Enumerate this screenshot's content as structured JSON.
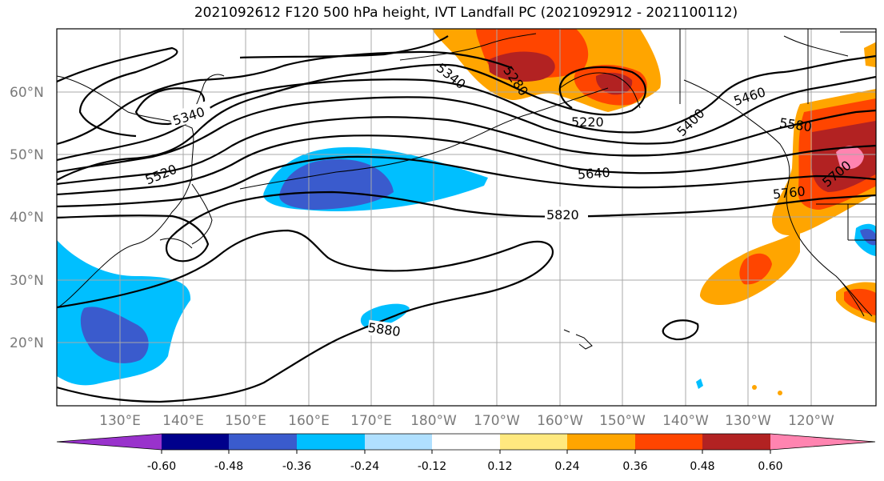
{
  "title": "2021092612 F120 500 hPa height, IVT Landfall PC (2021092912 - 2021100112)",
  "lat_labels": [
    "60°N",
    "50°N",
    "40°N",
    "30°N",
    "20°N"
  ],
  "lon_labels": [
    "130°E",
    "140°E",
    "150°E",
    "160°E",
    "170°E",
    "180°W",
    "170°W",
    "160°W",
    "150°W",
    "140°W",
    "130°W",
    "120°W"
  ],
  "contour_labels": [
    "5340",
    "5340",
    "5280",
    "5220",
    "5400",
    "5460",
    "5580",
    "5520",
    "5640",
    "5700",
    "5760",
    "5820",
    "5880"
  ],
  "colorbar": {
    "tick_labels": [
      "-0.60",
      "-0.48",
      "-0.36",
      "-0.24",
      "-0.12",
      "0.12",
      "0.24",
      "0.36",
      "0.48",
      "0.60"
    ],
    "colors": [
      "#9932cc",
      "#00008b",
      "#3a5bcd",
      "#00bfff",
      "#b0e0ff",
      "#ffffff",
      "#ffe97f",
      "#ffa500",
      "#ff4500",
      "#b22222",
      "#ff84b0"
    ]
  }
}
